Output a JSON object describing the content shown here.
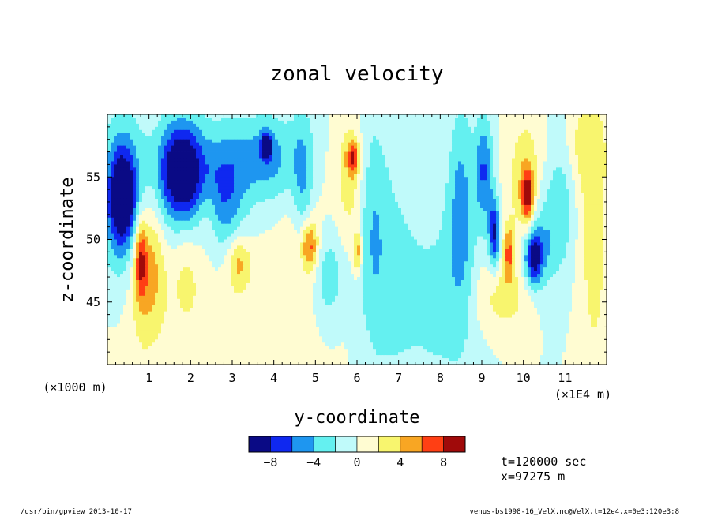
{
  "chart_data": {
    "type": "heatmap",
    "title": "zonal velocity",
    "xlabel": "y-coordinate",
    "ylabel": "z-coordinate",
    "x_unit": "(×1E4 m)",
    "y_unit": "(×1000 m)",
    "xlim": [
      0,
      120000
    ],
    "ylim": [
      40000,
      60000
    ],
    "x_ticks": [
      {
        "value": 10000,
        "label": "1"
      },
      {
        "value": 20000,
        "label": "2"
      },
      {
        "value": 30000,
        "label": "3"
      },
      {
        "value": 40000,
        "label": "4"
      },
      {
        "value": 50000,
        "label": "5"
      },
      {
        "value": 60000,
        "label": "6"
      },
      {
        "value": 70000,
        "label": "7"
      },
      {
        "value": 80000,
        "label": "8"
      },
      {
        "value": 90000,
        "label": "9"
      },
      {
        "value": 100000,
        "label": "10"
      },
      {
        "value": 110000,
        "label": "11"
      }
    ],
    "y_ticks": [
      {
        "value": 45000,
        "label": "45"
      },
      {
        "value": 50000,
        "label": "50"
      },
      {
        "value": 55000,
        "label": "55"
      }
    ],
    "colorbar": {
      "levels": [
        -10,
        -8,
        -6,
        -4,
        -2,
        0,
        2,
        4,
        6,
        8,
        10
      ],
      "colors": [
        "#0a0a85",
        "#0f28f0",
        "#1e96f0",
        "#64f0f0",
        "#c0fafa",
        "#fffcd2",
        "#f8f56e",
        "#f8a623",
        "#ff3f14",
        "#a00a0a"
      ],
      "tick_labels": [
        {
          "value": -8,
          "label": "−8"
        },
        {
          "value": -4,
          "label": "−4"
        },
        {
          "value": 0,
          "label": "0"
        },
        {
          "value": 4,
          "label": "4"
        },
        {
          "value": 8,
          "label": "8"
        }
      ]
    },
    "features": [
      {
        "y": 3500,
        "z": 53500,
        "u": -9.0,
        "sy": 2200,
        "sz": 2600
      },
      {
        "y": 4000,
        "z": 53000,
        "u": -5.0,
        "sy": 4500,
        "sz": 5000
      },
      {
        "y": 8000,
        "z": 48500,
        "u": 6.5,
        "sy": 1100,
        "sz": 2200
      },
      {
        "y": 8500,
        "z": 47500,
        "u": 3.5,
        "sy": 2500,
        "sz": 4500
      },
      {
        "y": 11500,
        "z": 49000,
        "u": 3.0,
        "sy": 2200,
        "sz": 4000
      },
      {
        "y": 17500,
        "z": 55800,
        "u": -8.0,
        "sy": 3500,
        "sz": 2600
      },
      {
        "y": 19500,
        "z": 54000,
        "u": -5.5,
        "sy": 5500,
        "sz": 3500
      },
      {
        "y": 19000,
        "z": 49000,
        "u": 2.5,
        "sy": 2500,
        "sz": 3500
      },
      {
        "y": 24000,
        "z": 52000,
        "u": 3.0,
        "sy": 2000,
        "sz": 2200
      },
      {
        "y": 28500,
        "z": 53500,
        "u": -4.5,
        "sy": 3500,
        "sz": 3500
      },
      {
        "y": 31500,
        "z": 48200,
        "u": 4.5,
        "sy": 2000,
        "sz": 1500
      },
      {
        "y": 38000,
        "z": 56500,
        "u": -5.0,
        "sy": 6000,
        "sz": 2500
      },
      {
        "y": 38200,
        "z": 57500,
        "u": -8.0,
        "sy": 900,
        "sz": 700
      },
      {
        "y": 47000,
        "z": 52500,
        "u": -4.5,
        "sy": 1800,
        "sz": 5500
      },
      {
        "y": 48500,
        "z": 49500,
        "u": 6.5,
        "sy": 1400,
        "sz": 1400
      },
      {
        "y": 47000,
        "z": 49000,
        "u": 3.0,
        "sy": 3000,
        "sz": 3500
      },
      {
        "y": 53000,
        "z": 47000,
        "u": -4.0,
        "sy": 2500,
        "sz": 2500
      },
      {
        "y": 58500,
        "z": 55000,
        "u": 3.5,
        "sy": 2500,
        "sz": 3500
      },
      {
        "y": 59000,
        "z": 56500,
        "u": 6.5,
        "sy": 1000,
        "sz": 900
      },
      {
        "y": 60200,
        "z": 49000,
        "u": 5.5,
        "sy": 800,
        "sz": 1200
      },
      {
        "y": 63500,
        "z": 51500,
        "u": -3.0,
        "sy": 2500,
        "sz": 6500
      },
      {
        "y": 68000,
        "z": 47000,
        "u": -2.5,
        "sy": 4500,
        "sz": 7000
      },
      {
        "y": 80000,
        "z": 45000,
        "u": -2.5,
        "sy": 6000,
        "sz": 6000
      },
      {
        "y": 85000,
        "z": 52500,
        "u": -4.5,
        "sy": 2200,
        "sz": 6000
      },
      {
        "y": 90500,
        "z": 55500,
        "u": -6.0,
        "sy": 1500,
        "sz": 3000
      },
      {
        "y": 93000,
        "z": 50500,
        "u": -8.0,
        "sy": 1000,
        "sz": 2000
      },
      {
        "y": 96500,
        "z": 49000,
        "u": 6.0,
        "sy": 900,
        "sz": 1500
      },
      {
        "y": 100500,
        "z": 54000,
        "u": 4.0,
        "sy": 3000,
        "sz": 4000
      },
      {
        "y": 101000,
        "z": 53500,
        "u": 7.5,
        "sy": 1000,
        "sz": 1500
      },
      {
        "y": 102500,
        "z": 48500,
        "u": -8.5,
        "sy": 1500,
        "sz": 1500
      },
      {
        "y": 104000,
        "z": 50000,
        "u": -4.0,
        "sy": 3500,
        "sz": 3000
      },
      {
        "y": 109000,
        "z": 54000,
        "u": -3.0,
        "sy": 2500,
        "sz": 4000
      },
      {
        "y": 117000,
        "z": 50000,
        "u": 3.0,
        "sy": 2500,
        "sz": 8000
      },
      {
        "y": 114000,
        "z": 57500,
        "u": 2.5,
        "sy": 4000,
        "sz": 2500
      },
      {
        "y": 95000,
        "z": 45500,
        "u": 3.0,
        "sy": 5000,
        "sz": 2000
      },
      {
        "y": 25000,
        "z": 45000,
        "u": 1.2,
        "sy": 20000,
        "sz": 4000
      }
    ]
  },
  "annotations": {
    "time": "t=120000 sec",
    "position": "x=97275 m"
  },
  "footer": {
    "left": "/usr/bin/gpview  2013-10-17",
    "right": "venus-bs1998-16_VelX.nc@VelX,t=12e4,x=0e3:120e3:8"
  }
}
